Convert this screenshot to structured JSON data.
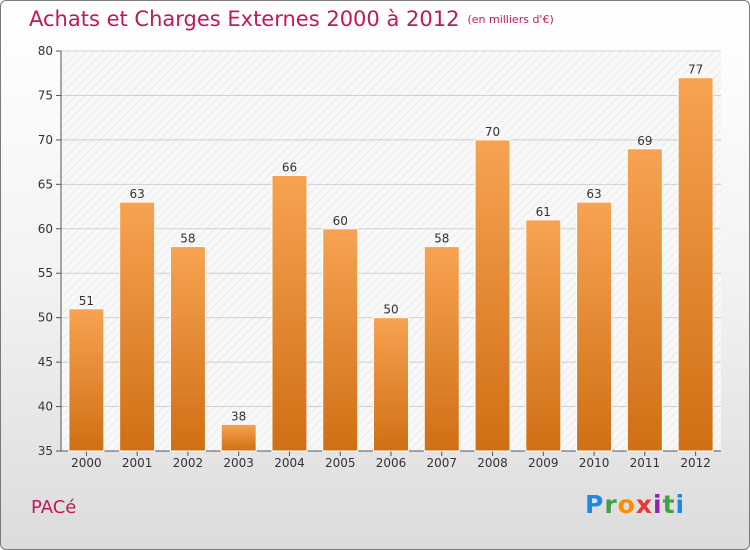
{
  "header": {
    "title": "Achats et Charges Externes 2000 à 2012",
    "unit": "(en milliers d'€)"
  },
  "footer": {
    "place": "PACé",
    "logo": {
      "letters": [
        "P",
        "r",
        "o",
        "x",
        "i",
        "t",
        "i"
      ],
      "colors": [
        "#1e88e5",
        "#43a047",
        "#fb8c00",
        "#e53935",
        "#8e24aa",
        "#43a047",
        "#1e88e5"
      ]
    }
  },
  "chart_data": {
    "type": "bar",
    "categories": [
      "2000",
      "2001",
      "2002",
      "2003",
      "2004",
      "2005",
      "2006",
      "2007",
      "2008",
      "2009",
      "2010",
      "2011",
      "2012"
    ],
    "values": [
      51,
      63,
      58,
      38,
      66,
      60,
      50,
      58,
      70,
      61,
      63,
      69,
      77
    ],
    "data_labels": [
      "51",
      "63",
      "58",
      "38",
      "66",
      "60",
      "50",
      "58",
      "70",
      "61",
      "63",
      "69",
      "77"
    ],
    "ylim": [
      35,
      80
    ],
    "yticks": [
      35,
      40,
      45,
      50,
      55,
      60,
      65,
      70,
      75,
      80
    ],
    "grid": true,
    "bar_color_top": "#f7a352",
    "bar_color_bottom": "#d06f14"
  }
}
